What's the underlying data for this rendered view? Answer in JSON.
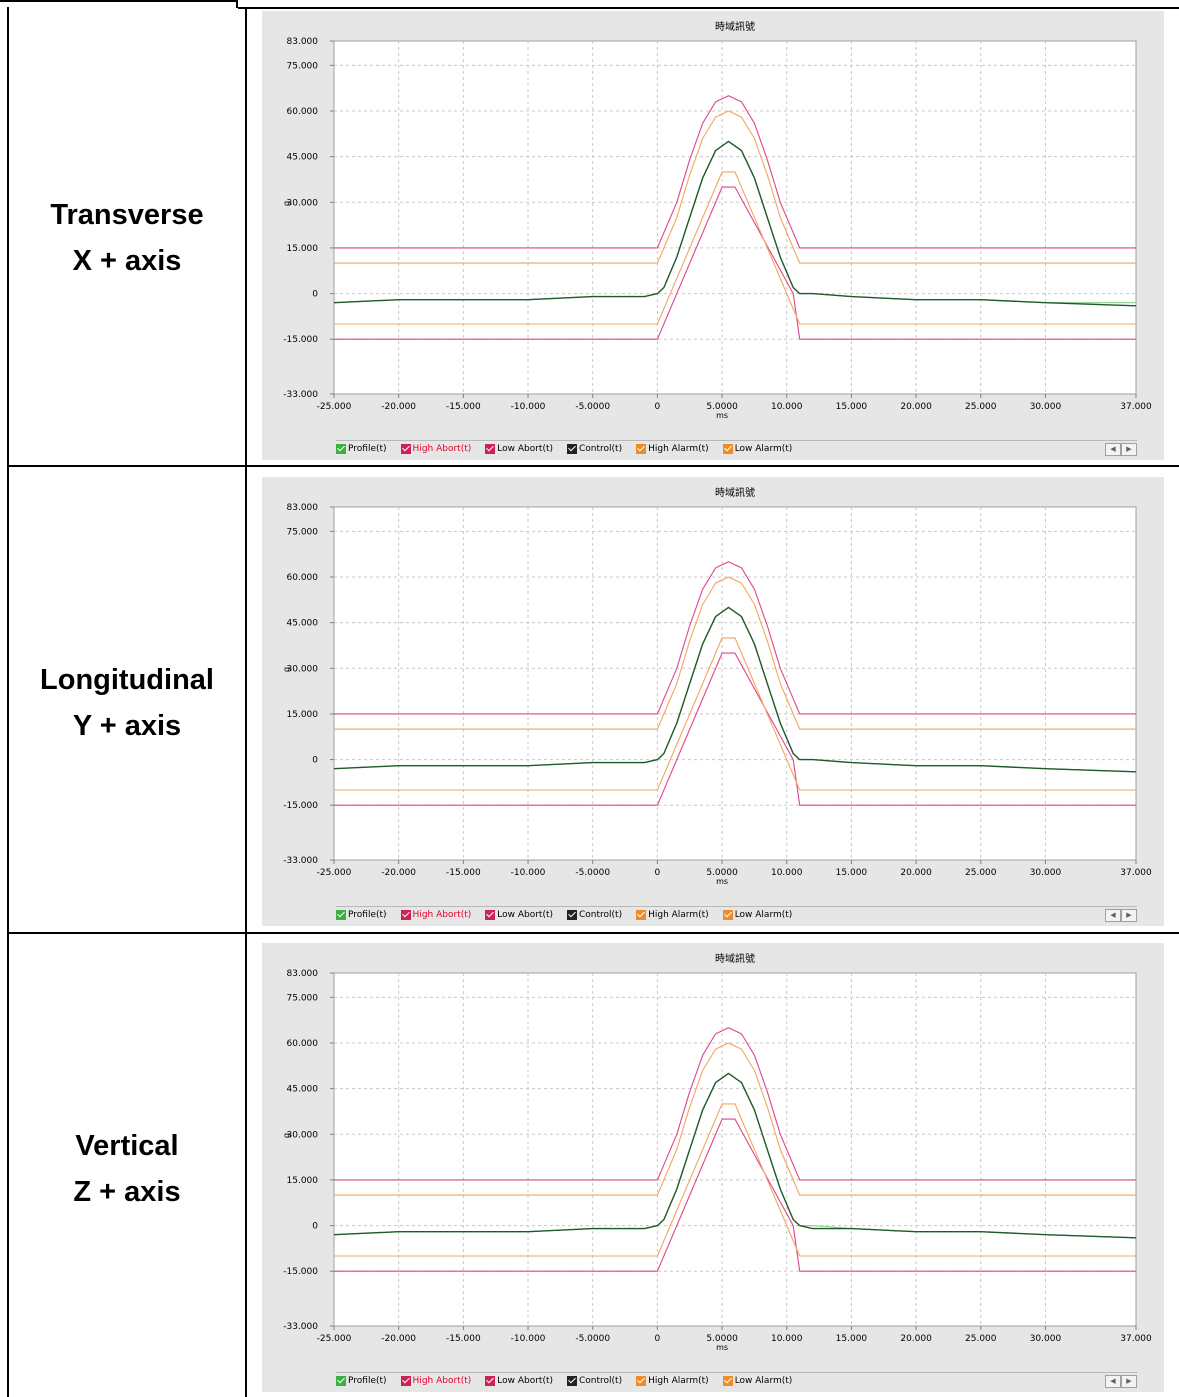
{
  "rows": [
    {
      "label_line1": "Transverse",
      "label_line2": "X + axis"
    },
    {
      "label_line1": "Longitudinal",
      "label_line2": "Y + axis"
    },
    {
      "label_line1": "Vertical",
      "label_line2": "Z + axis"
    }
  ],
  "colors": {
    "profile": "#8dcf8d",
    "control": "#1f5a2a",
    "abort": "#e0448a",
    "alarm": "#f4a460",
    "abort_legend": "#cc2255",
    "high_abort_text": "#e8002a"
  },
  "chart_data": [
    {
      "type": "line",
      "title": "時域訊號",
      "xlabel": "ms",
      "ylabel": "g",
      "xlim": [
        -25,
        37
      ],
      "ylim": [
        -33,
        83
      ],
      "grid": true,
      "legend_placement": "bottom",
      "x_ticks": [
        "-25.000",
        "-20.000",
        "-15.000",
        "-10.000",
        "-5.0000",
        "0",
        "5.0000",
        "10.000",
        "15.000",
        "20.000",
        "25.000",
        "30.000",
        "37.000"
      ],
      "y_ticks": [
        "83.000",
        "75.000",
        "60.000",
        "45.000",
        "30.000",
        "15.000",
        "0",
        "-15.000",
        "-33.000"
      ],
      "legend": [
        "Profile(t)",
        "High Abort(t)",
        "Low Abort(t)",
        "Control(t)",
        "High Alarm(t)",
        "Low Alarm(t)"
      ],
      "series": [
        {
          "name": "Profile(t)",
          "x": [
            -25,
            -20,
            -15,
            -10,
            -5,
            -1,
            0,
            0.5,
            1.5,
            2.5,
            3.5,
            4.5,
            5.5,
            6.5,
            7.5,
            8.5,
            9.5,
            10.5,
            11,
            12,
            15,
            20,
            25,
            30,
            37
          ],
          "y": [
            -3,
            -2,
            -2,
            -2,
            -1,
            -1,
            0,
            2,
            12,
            25,
            38,
            47,
            50,
            47,
            38,
            25,
            12,
            2,
            0,
            0,
            -1,
            -2,
            -2,
            -3,
            -3
          ]
        },
        {
          "name": "High Abort(t)",
          "x": [
            -25,
            0,
            0.5,
            1.5,
            2.5,
            3.5,
            4.5,
            5.5,
            6.5,
            7.5,
            8.5,
            9.5,
            10.5,
            11,
            37
          ],
          "y": [
            15,
            15,
            20,
            30,
            44,
            56,
            63,
            65,
            63,
            56,
            44,
            30,
            20,
            15,
            15
          ]
        },
        {
          "name": "Low Abort(t)",
          "x": [
            -25,
            0,
            5,
            6,
            10.5,
            11,
            37
          ],
          "y": [
            -15,
            -15,
            35,
            35,
            0,
            -15,
            -15
          ]
        },
        {
          "name": "Control(t)",
          "x": [
            -25,
            -20,
            -15,
            -10,
            -5,
            -1,
            0,
            0.5,
            1.5,
            2.5,
            3.5,
            4.5,
            5.5,
            6.5,
            7.5,
            8.5,
            9.5,
            10.5,
            11,
            12,
            15,
            20,
            25,
            30,
            37
          ],
          "y": [
            -3,
            -2,
            -2,
            -2,
            -1,
            -1,
            0,
            2,
            12,
            25,
            38,
            47,
            50,
            47,
            38,
            25,
            12,
            2,
            0,
            0,
            -1,
            -2,
            -2,
            -3,
            -4
          ]
        },
        {
          "name": "High Alarm(t)",
          "x": [
            -25,
            0,
            0.5,
            1.5,
            2.5,
            3.5,
            4.5,
            5.5,
            6.5,
            7.5,
            8.5,
            9.5,
            10.5,
            11,
            37
          ],
          "y": [
            10,
            10,
            15,
            25,
            39,
            51,
            58,
            60,
            58,
            51,
            39,
            25,
            15,
            10,
            10
          ]
        },
        {
          "name": "Low Alarm(t)",
          "x": [
            -25,
            0,
            5,
            6,
            11,
            37
          ],
          "y": [
            -10,
            -10,
            40,
            40,
            -10,
            -10
          ]
        }
      ]
    },
    {
      "type": "line",
      "title": "時域訊號",
      "xlabel": "ms",
      "ylabel": "g",
      "xlim": [
        -25,
        37
      ],
      "ylim": [
        -33,
        83
      ],
      "grid": true,
      "legend_placement": "bottom",
      "x_ticks": [
        "-25.000",
        "-20.000",
        "-15.000",
        "-10.000",
        "-5.0000",
        "0",
        "5.0000",
        "10.000",
        "15.000",
        "20.000",
        "25.000",
        "30.000",
        "37.000"
      ],
      "y_ticks": [
        "83.000",
        "75.000",
        "60.000",
        "45.000",
        "30.000",
        "15.000",
        "0",
        "-15.000",
        "-33.000"
      ],
      "legend": [
        "Profile(t)",
        "High Abort(t)",
        "Low Abort(t)",
        "Control(t)",
        "High Alarm(t)",
        "Low Alarm(t)"
      ],
      "series": [
        {
          "name": "Profile(t)",
          "x": [
            -25,
            -20,
            -15,
            -10,
            -5,
            -1,
            0,
            0.5,
            1.5,
            2.5,
            3.5,
            4.5,
            5.5,
            6.5,
            7.5,
            8.5,
            9.5,
            10.5,
            11,
            12,
            15,
            20,
            25,
            30,
            37
          ],
          "y": [
            -3,
            -2,
            -2,
            -2,
            -1,
            -1,
            0,
            2,
            12,
            25,
            38,
            47,
            50,
            47,
            38,
            25,
            12,
            2,
            0,
            0,
            -1,
            -2,
            -2,
            -3,
            -4
          ]
        },
        {
          "name": "High Abort(t)",
          "x": [
            -25,
            0,
            0.5,
            1.5,
            2.5,
            3.5,
            4.5,
            5.5,
            6.5,
            7.5,
            8.5,
            9.5,
            10.5,
            11,
            37
          ],
          "y": [
            15,
            15,
            20,
            30,
            44,
            56,
            63,
            65,
            63,
            56,
            44,
            30,
            20,
            15,
            15
          ]
        },
        {
          "name": "Low Abort(t)",
          "x": [
            -25,
            0,
            5,
            6,
            10.5,
            11,
            37
          ],
          "y": [
            -15,
            -15,
            35,
            35,
            0,
            -15,
            -15
          ]
        },
        {
          "name": "Control(t)",
          "x": [
            -25,
            -20,
            -15,
            -10,
            -5,
            -1,
            0,
            0.5,
            1.5,
            2.5,
            3.5,
            4.5,
            5.5,
            6.5,
            7.5,
            8.5,
            9.5,
            10.5,
            11,
            12,
            15,
            20,
            25,
            30,
            37
          ],
          "y": [
            -3,
            -2,
            -2,
            -2,
            -1,
            -1,
            0,
            2,
            12,
            25,
            38,
            47,
            50,
            47,
            38,
            25,
            12,
            2,
            0,
            0,
            -1,
            -2,
            -2,
            -3,
            -4
          ]
        },
        {
          "name": "High Alarm(t)",
          "x": [
            -25,
            0,
            0.5,
            1.5,
            2.5,
            3.5,
            4.5,
            5.5,
            6.5,
            7.5,
            8.5,
            9.5,
            10.5,
            11,
            37
          ],
          "y": [
            10,
            10,
            15,
            25,
            39,
            51,
            58,
            60,
            58,
            51,
            39,
            25,
            15,
            10,
            10
          ]
        },
        {
          "name": "Low Alarm(t)",
          "x": [
            -25,
            0,
            5,
            6,
            11,
            37
          ],
          "y": [
            -10,
            -10,
            40,
            40,
            -10,
            -10
          ]
        }
      ]
    },
    {
      "type": "line",
      "title": "時域訊號",
      "xlabel": "ms",
      "ylabel": "g",
      "xlim": [
        -25,
        37
      ],
      "ylim": [
        -33,
        83
      ],
      "grid": true,
      "legend_placement": "bottom",
      "x_ticks": [
        "-25.000",
        "-20.000",
        "-15.000",
        "-10.000",
        "-5.0000",
        "0",
        "5.0000",
        "10.000",
        "15.000",
        "20.000",
        "25.000",
        "30.000",
        "37.000"
      ],
      "y_ticks": [
        "83.000",
        "75.000",
        "60.000",
        "45.000",
        "30.000",
        "15.000",
        "0",
        "-15.000",
        "-33.000"
      ],
      "legend": [
        "Profile(t)",
        "High Abort(t)",
        "Low Abort(t)",
        "Control(t)",
        "High Alarm(t)",
        "Low Alarm(t)"
      ],
      "series": [
        {
          "name": "Profile(t)",
          "x": [
            -25,
            -20,
            -15,
            -10,
            -5,
            -1,
            0,
            0.5,
            1.5,
            2.5,
            3.5,
            4.5,
            5.5,
            6.5,
            7.5,
            8.5,
            9.5,
            10.5,
            11,
            12,
            15,
            20,
            25,
            30,
            37
          ],
          "y": [
            -3,
            -2,
            -2,
            -2,
            -1,
            -1,
            0,
            2,
            12,
            25,
            38,
            47,
            50,
            47,
            38,
            25,
            12,
            2,
            0,
            0,
            -1,
            -2,
            -2,
            -3,
            -4
          ]
        },
        {
          "name": "High Abort(t)",
          "x": [
            -25,
            0,
            0.5,
            1.5,
            2.5,
            3.5,
            4.5,
            5.5,
            6.5,
            7.5,
            8.5,
            9.5,
            10.5,
            11,
            37
          ],
          "y": [
            15,
            15,
            20,
            30,
            44,
            56,
            63,
            65,
            63,
            56,
            44,
            30,
            20,
            15,
            15
          ]
        },
        {
          "name": "Low Abort(t)",
          "x": [
            -25,
            0,
            5,
            6,
            10.5,
            11,
            37
          ],
          "y": [
            -15,
            -15,
            35,
            35,
            0,
            -15,
            -15
          ]
        },
        {
          "name": "Control(t)",
          "x": [
            -25,
            -20,
            -15,
            -10,
            -5,
            -1,
            0,
            0.5,
            1.5,
            2.5,
            3.5,
            4.5,
            5.5,
            6.5,
            7.5,
            8.5,
            9.5,
            10.5,
            11,
            12,
            15,
            20,
            25,
            30,
            37
          ],
          "y": [
            -3,
            -2,
            -2,
            -2,
            -1,
            -1,
            0,
            2,
            12,
            25,
            38,
            47,
            50,
            47,
            38,
            25,
            12,
            2,
            0,
            -1,
            -1,
            -2,
            -2,
            -3,
            -4
          ]
        },
        {
          "name": "High Alarm(t)",
          "x": [
            -25,
            0,
            0.5,
            1.5,
            2.5,
            3.5,
            4.5,
            5.5,
            6.5,
            7.5,
            8.5,
            9.5,
            10.5,
            11,
            37
          ],
          "y": [
            10,
            10,
            15,
            25,
            39,
            51,
            58,
            60,
            58,
            51,
            39,
            25,
            15,
            10,
            10
          ]
        },
        {
          "name": "Low Alarm(t)",
          "x": [
            -25,
            0,
            5,
            6,
            11,
            37
          ],
          "y": [
            -10,
            -10,
            40,
            40,
            -10,
            -10
          ]
        }
      ]
    }
  ]
}
